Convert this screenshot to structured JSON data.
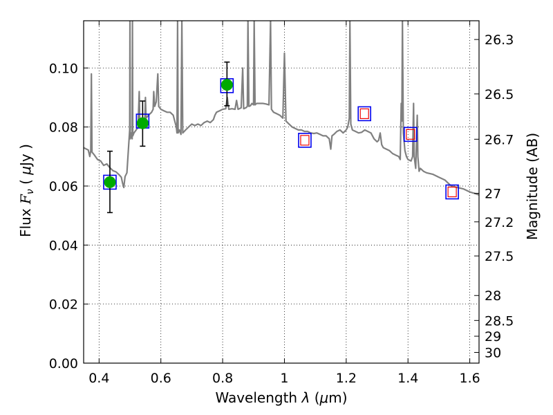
{
  "chart_data": {
    "type": "scatter",
    "xlabel_text": "Wavelength",
    "xlabel_symbol": "λ",
    "xlabel_unit_open": "(",
    "xlabel_unit_mu": "μ",
    "xlabel_unit_rest": "m)",
    "ylabel_text": "Flux",
    "ylabel_symbol": "F",
    "ylabel_sub": "ν",
    "ylabel_unit_open": "(",
    "ylabel_unit_mu": "μ",
    "ylabel_unit_rest": "Jy )",
    "y2label": "Magnitude (AB)",
    "xlim": [
      0.35,
      1.63
    ],
    "ylim": [
      0.0,
      0.116
    ],
    "grid": true,
    "x_ticks": [
      {
        "value": 0.4,
        "label": "0.4"
      },
      {
        "value": 0.6,
        "label": "0.6"
      },
      {
        "value": 0.8,
        "label": "0.8"
      },
      {
        "value": 1.0,
        "label": "1"
      },
      {
        "value": 1.2,
        "label": "1.2"
      },
      {
        "value": 1.4,
        "label": "1.4"
      },
      {
        "value": 1.6,
        "label": "1.6"
      }
    ],
    "y_ticks": [
      {
        "value": 0.0,
        "label": "0.00"
      },
      {
        "value": 0.02,
        "label": "0.02"
      },
      {
        "value": 0.04,
        "label": "0.04"
      },
      {
        "value": 0.06,
        "label": "0.06"
      },
      {
        "value": 0.08,
        "label": "0.08"
      },
      {
        "value": 0.1,
        "label": "0.10"
      }
    ],
    "mag_ticks": [
      {
        "value": 26.3,
        "label": "26.3"
      },
      {
        "value": 26.5,
        "label": "26.5"
      },
      {
        "value": 26.7,
        "label": "26.7"
      },
      {
        "value": 27.0,
        "label": "27"
      },
      {
        "value": 27.2,
        "label": "27.2"
      },
      {
        "value": 27.5,
        "label": "27.5"
      },
      {
        "value": 28.0,
        "label": "28"
      },
      {
        "value": 28.5,
        "label": "28.5"
      },
      {
        "value": 29.0,
        "label": "29"
      },
      {
        "value": 30.0,
        "label": "30"
      }
    ],
    "mag_zero_point": 23.9,
    "colors": {
      "sed": "#808080",
      "detection": "#00aa00",
      "box_outer": "#0000ee",
      "box_inner": "#ee0000",
      "errorbar": "#000000",
      "grid": "#000000"
    },
    "sed_model": [
      [
        0.35,
        0.073
      ],
      [
        0.365,
        0.0722
      ],
      [
        0.37,
        0.07
      ],
      [
        0.373,
        0.072
      ],
      [
        0.375,
        0.098
      ],
      [
        0.377,
        0.0715
      ],
      [
        0.385,
        0.0705
      ],
      [
        0.395,
        0.069
      ],
      [
        0.405,
        0.0685
      ],
      [
        0.415,
        0.067
      ],
      [
        0.425,
        0.0675
      ],
      [
        0.435,
        0.0662
      ],
      [
        0.445,
        0.0652
      ],
      [
        0.455,
        0.0648
      ],
      [
        0.465,
        0.0638
      ],
      [
        0.472,
        0.063
      ],
      [
        0.476,
        0.061
      ],
      [
        0.48,
        0.0595
      ],
      [
        0.484,
        0.0632
      ],
      [
        0.49,
        0.0645
      ],
      [
        0.496,
        0.074
      ],
      [
        0.499,
        0.079
      ],
      [
        0.5,
        0.116
      ],
      [
        0.501,
        0.076
      ],
      [
        0.504,
        0.078
      ],
      [
        0.507,
        0.076
      ],
      [
        0.508,
        0.116
      ],
      [
        0.509,
        0.077
      ],
      [
        0.513,
        0.078
      ],
      [
        0.52,
        0.079
      ],
      [
        0.526,
        0.08
      ],
      [
        0.53,
        0.092
      ],
      [
        0.532,
        0.081
      ],
      [
        0.54,
        0.082
      ],
      [
        0.548,
        0.0825
      ],
      [
        0.55,
        0.09
      ],
      [
        0.552,
        0.083
      ],
      [
        0.56,
        0.084
      ],
      [
        0.57,
        0.085
      ],
      [
        0.575,
        0.086
      ],
      [
        0.577,
        0.092
      ],
      [
        0.58,
        0.087
      ],
      [
        0.585,
        0.0885
      ],
      [
        0.59,
        0.098
      ],
      [
        0.593,
        0.087
      ],
      [
        0.6,
        0.086
      ],
      [
        0.61,
        0.0855
      ],
      [
        0.62,
        0.085
      ],
      [
        0.63,
        0.085
      ],
      [
        0.64,
        0.084
      ],
      [
        0.645,
        0.082
      ],
      [
        0.65,
        0.08
      ],
      [
        0.652,
        0.078
      ],
      [
        0.654,
        0.116
      ],
      [
        0.656,
        0.078
      ],
      [
        0.66,
        0.079
      ],
      [
        0.665,
        0.0775
      ],
      [
        0.668,
        0.116
      ],
      [
        0.671,
        0.078
      ],
      [
        0.68,
        0.079
      ],
      [
        0.69,
        0.08
      ],
      [
        0.7,
        0.081
      ],
      [
        0.71,
        0.0805
      ],
      [
        0.72,
        0.081
      ],
      [
        0.73,
        0.0805
      ],
      [
        0.74,
        0.0815
      ],
      [
        0.75,
        0.082
      ],
      [
        0.76,
        0.0815
      ],
      [
        0.77,
        0.0825
      ],
      [
        0.775,
        0.084
      ],
      [
        0.78,
        0.085
      ],
      [
        0.79,
        0.0855
      ],
      [
        0.8,
        0.086
      ],
      [
        0.81,
        0.0862
      ],
      [
        0.815,
        0.09
      ],
      [
        0.82,
        0.086
      ],
      [
        0.83,
        0.0862
      ],
      [
        0.84,
        0.086
      ],
      [
        0.845,
        0.089
      ],
      [
        0.85,
        0.086
      ],
      [
        0.86,
        0.0865
      ],
      [
        0.865,
        0.1
      ],
      [
        0.868,
        0.0862
      ],
      [
        0.875,
        0.0865
      ],
      [
        0.88,
        0.087
      ],
      [
        0.882,
        0.116
      ],
      [
        0.885,
        0.087
      ],
      [
        0.89,
        0.0872
      ],
      [
        0.895,
        0.088
      ],
      [
        0.9,
        0.0875
      ],
      [
        0.902,
        0.116
      ],
      [
        0.905,
        0.0875
      ],
      [
        0.91,
        0.088
      ],
      [
        0.92,
        0.088
      ],
      [
        0.93,
        0.088
      ],
      [
        0.94,
        0.0878
      ],
      [
        0.95,
        0.0875
      ],
      [
        0.955,
        0.116
      ],
      [
        0.958,
        0.086
      ],
      [
        0.965,
        0.085
      ],
      [
        0.975,
        0.0845
      ],
      [
        0.985,
        0.084
      ],
      [
        0.995,
        0.083
      ],
      [
        1.0,
        0.105
      ],
      [
        1.005,
        0.082
      ],
      [
        1.015,
        0.081
      ],
      [
        1.025,
        0.08
      ],
      [
        1.035,
        0.0795
      ],
      [
        1.045,
        0.079
      ],
      [
        1.055,
        0.079
      ],
      [
        1.065,
        0.0785
      ],
      [
        1.075,
        0.0785
      ],
      [
        1.085,
        0.078
      ],
      [
        1.095,
        0.0778
      ],
      [
        1.105,
        0.078
      ],
      [
        1.115,
        0.0775
      ],
      [
        1.125,
        0.077
      ],
      [
        1.135,
        0.077
      ],
      [
        1.145,
        0.076
      ],
      [
        1.15,
        0.0725
      ],
      [
        1.154,
        0.077
      ],
      [
        1.16,
        0.0775
      ],
      [
        1.17,
        0.0785
      ],
      [
        1.18,
        0.079
      ],
      [
        1.19,
        0.078
      ],
      [
        1.2,
        0.079
      ],
      [
        1.205,
        0.08
      ],
      [
        1.21,
        0.083
      ],
      [
        1.212,
        0.116
      ],
      [
        1.215,
        0.081
      ],
      [
        1.22,
        0.079
      ],
      [
        1.23,
        0.0785
      ],
      [
        1.24,
        0.078
      ],
      [
        1.25,
        0.0782
      ],
      [
        1.26,
        0.079
      ],
      [
        1.27,
        0.0785
      ],
      [
        1.28,
        0.078
      ],
      [
        1.29,
        0.076
      ],
      [
        1.3,
        0.075
      ],
      [
        1.305,
        0.0755
      ],
      [
        1.31,
        0.078
      ],
      [
        1.315,
        0.074
      ],
      [
        1.32,
        0.073
      ],
      [
        1.33,
        0.0725
      ],
      [
        1.34,
        0.072
      ],
      [
        1.35,
        0.071
      ],
      [
        1.36,
        0.0705
      ],
      [
        1.37,
        0.07
      ],
      [
        1.375,
        0.069
      ],
      [
        1.378,
        0.088
      ],
      [
        1.38,
        0.082
      ],
      [
        1.382,
        0.116
      ],
      [
        1.385,
        0.078
      ],
      [
        1.39,
        0.072
      ],
      [
        1.395,
        0.07
      ],
      [
        1.4,
        0.069
      ],
      [
        1.41,
        0.0685
      ],
      [
        1.415,
        0.07
      ],
      [
        1.418,
        0.088
      ],
      [
        1.42,
        0.07
      ],
      [
        1.425,
        0.066
      ],
      [
        1.43,
        0.084
      ],
      [
        1.432,
        0.07
      ],
      [
        1.436,
        0.065
      ],
      [
        1.44,
        0.066
      ],
      [
        1.45,
        0.065
      ],
      [
        1.46,
        0.0645
      ],
      [
        1.48,
        0.064
      ],
      [
        1.5,
        0.063
      ],
      [
        1.52,
        0.062
      ],
      [
        1.54,
        0.06
      ],
      [
        1.56,
        0.0595
      ],
      [
        1.58,
        0.059
      ],
      [
        1.6,
        0.058
      ],
      [
        1.615,
        0.0575
      ],
      [
        1.63,
        0.057
      ]
    ],
    "detections": [
      {
        "x": 0.435,
        "y": 0.0613,
        "err_low": 0.051,
        "err_high": 0.0718
      },
      {
        "x": 0.541,
        "y": 0.0813,
        "err_low": 0.0735,
        "err_high": 0.0888
      },
      {
        "x": 0.814,
        "y": 0.0943,
        "err_low": 0.0872,
        "err_high": 0.102
      }
    ],
    "model_boxes_with_detection": [
      {
        "x": 0.435,
        "y": 0.0613
      },
      {
        "x": 0.541,
        "y": 0.082
      },
      {
        "x": 0.814,
        "y": 0.094
      }
    ],
    "model_boxes": [
      {
        "x": 1.066,
        "y": 0.0755
      },
      {
        "x": 1.259,
        "y": 0.0845
      },
      {
        "x": 1.408,
        "y": 0.0775
      },
      {
        "x": 1.543,
        "y": 0.058
      }
    ]
  }
}
